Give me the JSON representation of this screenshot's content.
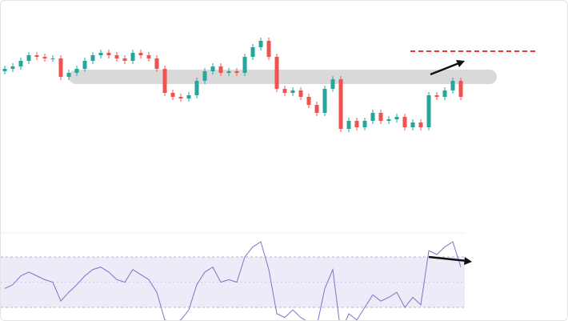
{
  "chart_data": [
    {
      "type": "candlestick",
      "color_up": "#26a69a",
      "color_down": "#ef5350",
      "ylim": [
        0,
        250
      ],
      "open": [
        162,
        165,
        168,
        175,
        182,
        180,
        178,
        178,
        155,
        160,
        165,
        175,
        182,
        185,
        182,
        178,
        175,
        185,
        182,
        178,
        165,
        135,
        130,
        128,
        132,
        150,
        162,
        168,
        160,
        162,
        160,
        180,
        192,
        200,
        180,
        140,
        135,
        138,
        130,
        120,
        110,
        140,
        152,
        90,
        100,
        92,
        100,
        110,
        100,
        102,
        105,
        92,
        98,
        92,
        132,
        130,
        138,
        150
      ],
      "high": [
        169,
        172,
        179,
        186,
        186,
        184,
        182,
        182,
        164,
        169,
        179,
        186,
        189,
        189,
        186,
        182,
        189,
        189,
        186,
        182,
        169,
        139,
        134,
        136,
        154,
        166,
        172,
        172,
        166,
        166,
        184,
        196,
        204,
        204,
        184,
        144,
        142,
        142,
        134,
        124,
        144,
        156,
        156,
        104,
        104,
        104,
        114,
        114,
        106,
        109,
        109,
        102,
        102,
        136,
        136,
        142,
        154,
        154
      ],
      "low": [
        158,
        161,
        164,
        171,
        176,
        174,
        174,
        151,
        151,
        156,
        161,
        171,
        178,
        178,
        174,
        171,
        171,
        178,
        174,
        161,
        131,
        126,
        124,
        124,
        128,
        146,
        158,
        156,
        156,
        156,
        156,
        176,
        188,
        176,
        136,
        131,
        131,
        126,
        116,
        106,
        106,
        136,
        86,
        86,
        88,
        88,
        96,
        96,
        96,
        98,
        88,
        88,
        88,
        88,
        126,
        126,
        134,
        126
      ],
      "close": [
        165,
        168,
        175,
        182,
        180,
        178,
        178,
        155,
        160,
        165,
        175,
        182,
        185,
        182,
        178,
        175,
        185,
        182,
        178,
        165,
        135,
        130,
        128,
        132,
        150,
        162,
        168,
        160,
        162,
        160,
        180,
        192,
        200,
        180,
        140,
        135,
        138,
        130,
        120,
        110,
        140,
        152,
        90,
        100,
        92,
        100,
        110,
        100,
        102,
        105,
        92,
        98,
        92,
        132,
        130,
        138,
        150,
        130
      ]
    },
    {
      "type": "line",
      "color": "#7b74c9",
      "ylim": [
        0,
        100
      ],
      "band": [
        30,
        70
      ],
      "values": [
        45,
        48,
        55,
        58,
        55,
        52,
        50,
        35,
        42,
        48,
        55,
        60,
        62,
        58,
        52,
        50,
        60,
        56,
        52,
        42,
        20,
        18,
        20,
        28,
        48,
        58,
        62,
        50,
        52,
        50,
        70,
        78,
        82,
        60,
        25,
        22,
        28,
        22,
        18,
        15,
        45,
        60,
        10,
        25,
        20,
        30,
        40,
        35,
        38,
        42,
        30,
        38,
        32,
        75,
        72,
        78,
        82,
        62
      ]
    }
  ]
}
